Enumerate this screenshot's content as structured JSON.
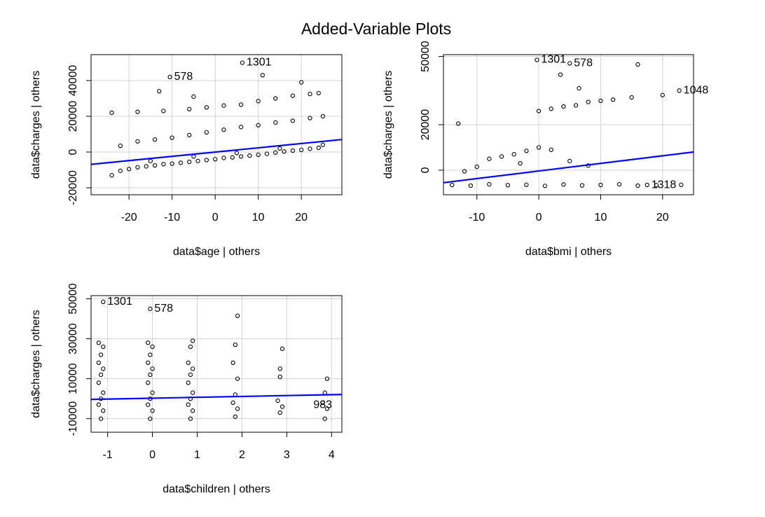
{
  "title": "Added-Variable Plots",
  "chart_data": [
    {
      "type": "scatter",
      "xlabel": "data$age | others",
      "ylabel": "data$charges  | others",
      "xlim": [
        -28.8,
        29.4
      ],
      "ylim": [
        -23900,
        54500
      ],
      "xticks": [
        -20,
        -10,
        0,
        10,
        20
      ],
      "yticks": [
        -20000,
        0,
        20000,
        40000
      ],
      "grid": true,
      "point_color": "#000000",
      "x": [
        -24,
        -22,
        -20,
        -18,
        -16,
        -14,
        -12,
        -10,
        -8,
        -6,
        -4,
        -2,
        0,
        2,
        4,
        6,
        8,
        10,
        12,
        14,
        16,
        18,
        20,
        22,
        24,
        -15,
        -5,
        5,
        15,
        25,
        -22,
        -18,
        -14,
        -10,
        -6,
        -2,
        2,
        6,
        10,
        14,
        18,
        22,
        25,
        -24,
        -18,
        -12,
        -6,
        -2,
        2,
        6,
        10,
        14,
        18,
        22,
        24,
        6.3,
        -10.5,
        11,
        -13,
        -5,
        20
      ],
      "values": [
        -13000,
        -10500,
        -9500,
        -8500,
        -8000,
        -7500,
        -6800,
        -6500,
        -6000,
        -5500,
        -5000,
        -4500,
        -4000,
        -3300,
        -3000,
        -2500,
        -2000,
        -1500,
        -1000,
        -300,
        300,
        800,
        1200,
        1800,
        2400,
        -5000,
        -2500,
        -500,
        2000,
        4000,
        3500,
        6000,
        7000,
        8000,
        9500,
        11000,
        12500,
        14000,
        15000,
        16500,
        17500,
        19000,
        20000,
        22000,
        22500,
        23000,
        24000,
        25000,
        26000,
        26500,
        28500,
        30000,
        31500,
        32500,
        33000,
        50000,
        42000,
        43000,
        34000,
        31000,
        39000
      ],
      "fit": {
        "color": "#0000ff",
        "x": [
          -28.8,
          29.4
        ],
        "values": [
          -6900,
          7000
        ]
      },
      "annotations": [
        {
          "text": "1301",
          "x": 6.3,
          "y": 50000
        },
        {
          "text": "578",
          "x": -10.5,
          "y": 42000
        }
      ]
    },
    {
      "type": "scatter",
      "xlabel": "data$bmi | others",
      "ylabel": "data$charges  | others",
      "xlim": [
        -15.4,
        25.0
      ],
      "ylim": [
        -10800,
        50800
      ],
      "xticks": [
        -10,
        0,
        10,
        20
      ],
      "yticks": [
        0,
        20000,
        50000
      ],
      "grid": true,
      "point_color": "#000000",
      "x": [
        -14,
        -11,
        -8,
        -5,
        -2,
        1,
        4,
        7,
        10,
        13,
        16,
        19,
        23,
        -12,
        -10,
        -8,
        -6,
        -4,
        -2,
        0,
        2,
        -3,
        5,
        8,
        0,
        2,
        4,
        6,
        8,
        10,
        12,
        15,
        16,
        20,
        22.7,
        -0.3,
        5,
        3.5,
        6.5,
        -13,
        17.5
      ],
      "values": [
        -6500,
        -6800,
        -6200,
        -6600,
        -6400,
        -6900,
        -6300,
        -6700,
        -6500,
        -6200,
        -6800,
        -6600,
        -6400,
        -500,
        1500,
        5000,
        6000,
        7000,
        8500,
        10000,
        9000,
        3000,
        4000,
        2000,
        26000,
        27000,
        28000,
        28500,
        30000,
        30500,
        31000,
        32000,
        46500,
        33000,
        35000,
        48500,
        47000,
        42000,
        36000,
        20500,
        -6500
      ],
      "fit": {
        "color": "#0000ff",
        "x": [
          -15.4,
          25.0
        ],
        "values": [
          -5500,
          8000
        ]
      },
      "annotations": [
        {
          "text": "1301",
          "x": -0.3,
          "y": 48500
        },
        {
          "text": "578",
          "x": 5,
          "y": 47000
        },
        {
          "text": "1048",
          "x": 22.7,
          "y": 35000
        },
        {
          "text": "1318",
          "x": 17.5,
          "y": -6500
        }
      ]
    },
    {
      "type": "scatter",
      "xlabel": "data$children | others",
      "ylabel": "data$charges  | others",
      "xlim": [
        -1.37,
        4.23
      ],
      "ylim": [
        -16800,
        51600
      ],
      "xticks": [
        -1,
        0,
        1,
        2,
        3,
        4
      ],
      "yticks": [
        -10000,
        10000,
        30000,
        50000
      ],
      "grid": true,
      "point_color": "#000000",
      "x": [
        -1.15,
        -1.1,
        -1.2,
        -1.15,
        -1.1,
        -1.2,
        -1.15,
        -1.1,
        -1.2,
        -1.15,
        -1.1,
        -1.2,
        -0.05,
        0,
        -0.1,
        -0.05,
        0,
        -0.1,
        -0.05,
        0,
        -0.1,
        -0.05,
        0,
        -0.1,
        0.85,
        0.9,
        0.8,
        0.85,
        0.9,
        0.8,
        0.85,
        0.9,
        0.8,
        0.85,
        0.9,
        1.85,
        1.9,
        1.8,
        1.85,
        1.9,
        1.8,
        1.85,
        2.85,
        2.9,
        2.8,
        2.85,
        2.9,
        2.85,
        3.85,
        3.9,
        3.8,
        3.85,
        3.9,
        -1.1,
        -0.05,
        1.9
      ],
      "values": [
        -10000,
        -6000,
        -3000,
        0,
        3000,
        8000,
        12000,
        15000,
        18000,
        22000,
        26000,
        28000,
        -10000,
        -6000,
        -3000,
        0,
        3000,
        8000,
        12000,
        15000,
        18000,
        22000,
        26000,
        28000,
        -10000,
        -6000,
        -3000,
        0,
        3000,
        8000,
        12000,
        15000,
        18000,
        26000,
        29000,
        -9000,
        -5000,
        -2000,
        2000,
        10000,
        18000,
        27000,
        -7000,
        -4000,
        -1000,
        11000,
        25000,
        15000,
        -10000,
        -5000,
        -2000,
        3000,
        10000,
        48500,
        45000,
        41500
      ],
      "fit": {
        "color": "#0000ff",
        "x": [
          -1.37,
          4.23
        ],
        "values": [
          -350,
          2100
        ]
      },
      "annotations": [
        {
          "text": "1301",
          "x": -1.1,
          "y": 48500
        },
        {
          "text": "578",
          "x": -0.05,
          "y": 45000
        },
        {
          "text": "983",
          "x": 3.5,
          "y": -3200
        }
      ]
    }
  ]
}
